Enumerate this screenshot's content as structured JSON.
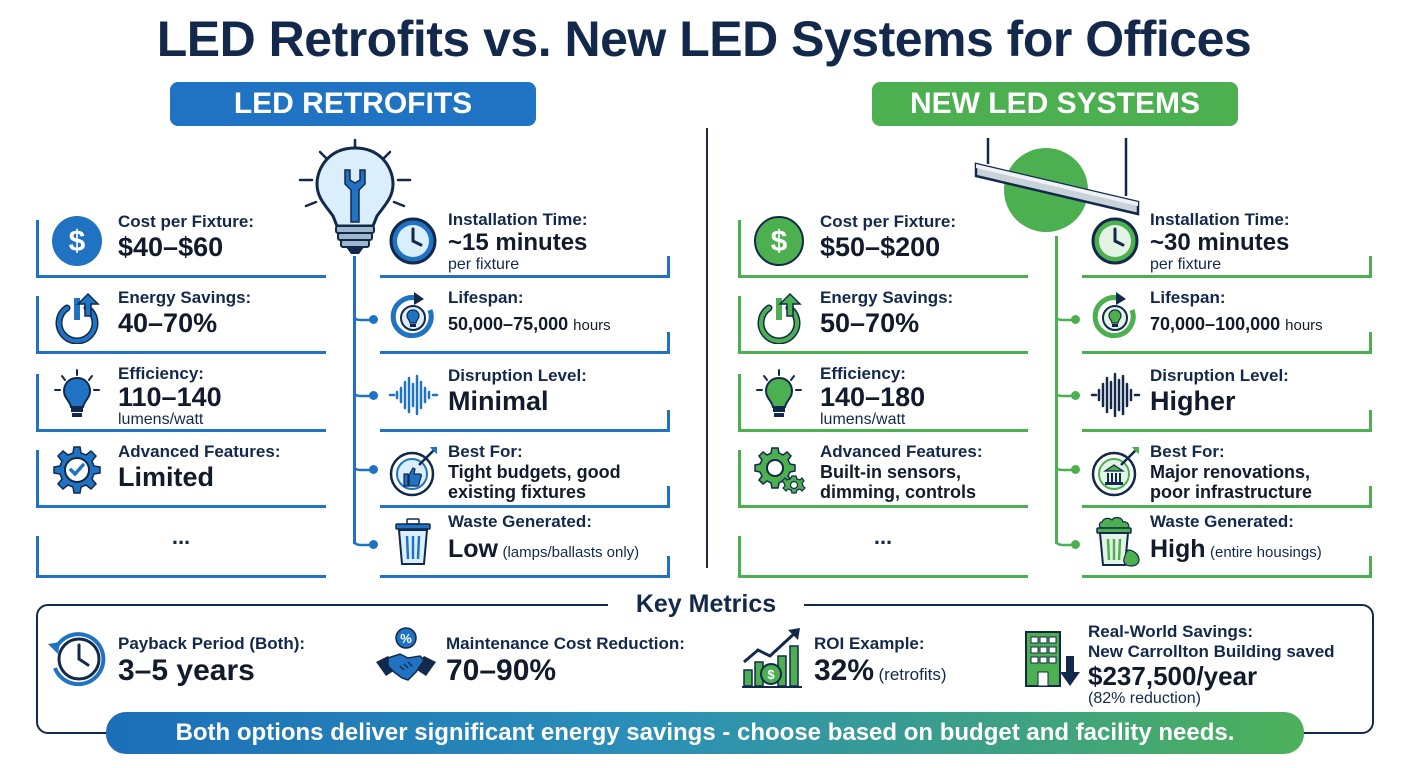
{
  "title": "LED Retrofits vs. New LED Systems for Offices",
  "colors": {
    "retrofit": "#1f73c2",
    "new": "#4caf50",
    "navy": "#13294b"
  },
  "retrofit": {
    "heading": "LED RETROFITS",
    "hero_icon": "lightbulb-wrench-icon",
    "cost": {
      "label": "Cost per Fixture:",
      "value": "$40–$60"
    },
    "energy": {
      "label": "Energy Savings:",
      "value": "40–70%"
    },
    "efficiency": {
      "label": "Efficiency:",
      "value": "110–140",
      "unit": "lumens/watt"
    },
    "features": {
      "label": "Advanced Features:",
      "value": "Limited"
    },
    "more": "...",
    "install": {
      "label": "Installation Time:",
      "value": "~15 minutes",
      "unit": "per fixture"
    },
    "lifespan": {
      "label": "Lifespan:",
      "value": "50,000–75,000",
      "unit": "hours"
    },
    "disruption": {
      "label": "Disruption Level:",
      "value": "Minimal"
    },
    "best": {
      "label": "Best For:",
      "value": "Tight budgets, good existing fixtures"
    },
    "waste": {
      "label": "Waste Generated:",
      "value": "Low",
      "note": "(lamps/ballasts only)"
    }
  },
  "new_systems": {
    "heading": "NEW LED SYSTEMS",
    "hero_icon": "ceiling-fixture-icon",
    "cost": {
      "label": "Cost per Fixture:",
      "value": "$50–$200"
    },
    "energy": {
      "label": "Energy Savings:",
      "value": "50–70%"
    },
    "efficiency": {
      "label": "Efficiency:",
      "value": "140–180",
      "unit": "lumens/watt"
    },
    "features": {
      "label": "Advanced Features:",
      "value": "Built-in sensors, dimming, controls"
    },
    "more": "...",
    "install": {
      "label": "Installation Time:",
      "value": "~30 minutes",
      "unit": "per fixture"
    },
    "lifespan": {
      "label": "Lifespan:",
      "value": "70,000–100,000",
      "unit": "hours"
    },
    "disruption": {
      "label": "Disruption Level:",
      "value": "Higher"
    },
    "best": {
      "label": "Best For:",
      "value": "Major renovations, poor infrastructure"
    },
    "waste": {
      "label": "Waste Generated:",
      "value": "High",
      "note": "(entire housings)"
    }
  },
  "key_metrics": {
    "title": "Key Metrics",
    "payback": {
      "label": "Payback Period (Both):",
      "value": "3–5 years"
    },
    "maintenance": {
      "label": "Maintenance Cost Reduction:",
      "value": "70–90%"
    },
    "roi": {
      "label": "ROI Example:",
      "value": "32%",
      "note": "(retrofits)"
    },
    "real_world": {
      "label": "Real-World Savings:",
      "line2": "New Carrollton Building saved",
      "value": "$237,500/year",
      "note": "(82% reduction)"
    }
  },
  "banner": "Both options deliver significant energy savings - choose based on budget and facility needs."
}
